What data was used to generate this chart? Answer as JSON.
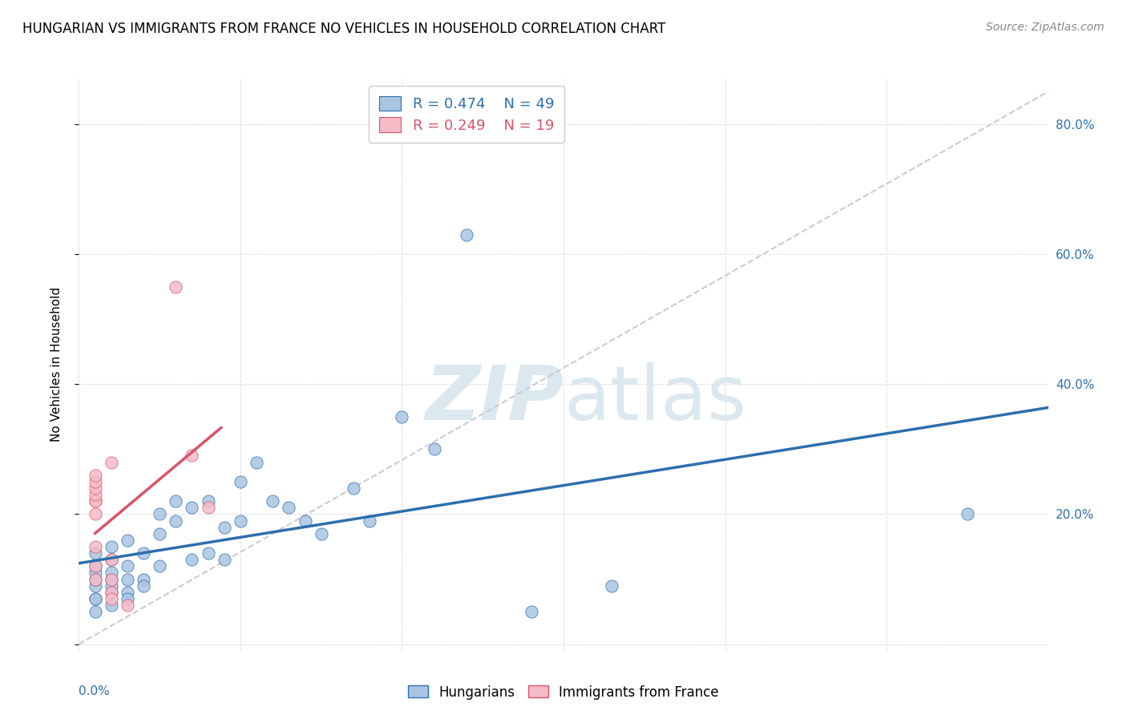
{
  "title": "HUNGARIAN VS IMMIGRANTS FROM FRANCE NO VEHICLES IN HOUSEHOLD CORRELATION CHART",
  "source": "Source: ZipAtlas.com",
  "ylabel": "No Vehicles in Household",
  "xlim": [
    0.0,
    0.6
  ],
  "ylim": [
    -0.01,
    0.87
  ],
  "yticks": [
    0.0,
    0.2,
    0.4,
    0.6,
    0.8
  ],
  "ytick_labels": [
    "",
    "20.0%",
    "40.0%",
    "60.0%",
    "80.0%"
  ],
  "legend_blue_r": "0.474",
  "legend_blue_n": "49",
  "legend_pink_r": "0.249",
  "legend_pink_n": "19",
  "blue_color": "#aac5e2",
  "pink_color": "#f5bcc8",
  "blue_line_color": "#2c6fad",
  "pink_line_color": "#d9546a",
  "dashed_line_color": "#cccccc",
  "watermark_color": "#dce8f0",
  "blue_scatter": [
    [
      0.01,
      0.05
    ],
    [
      0.01,
      0.07
    ],
    [
      0.01,
      0.09
    ],
    [
      0.01,
      0.1
    ],
    [
      0.01,
      0.11
    ],
    [
      0.01,
      0.12
    ],
    [
      0.01,
      0.14
    ],
    [
      0.01,
      0.07
    ],
    [
      0.02,
      0.08
    ],
    [
      0.02,
      0.1
    ],
    [
      0.02,
      0.11
    ],
    [
      0.02,
      0.06
    ],
    [
      0.02,
      0.09
    ],
    [
      0.02,
      0.13
    ],
    [
      0.02,
      0.15
    ],
    [
      0.03,
      0.08
    ],
    [
      0.03,
      0.1
    ],
    [
      0.03,
      0.12
    ],
    [
      0.03,
      0.07
    ],
    [
      0.03,
      0.16
    ],
    [
      0.04,
      0.14
    ],
    [
      0.04,
      0.1
    ],
    [
      0.04,
      0.09
    ],
    [
      0.05,
      0.12
    ],
    [
      0.05,
      0.17
    ],
    [
      0.05,
      0.2
    ],
    [
      0.06,
      0.22
    ],
    [
      0.06,
      0.19
    ],
    [
      0.07,
      0.21
    ],
    [
      0.07,
      0.13
    ],
    [
      0.08,
      0.14
    ],
    [
      0.08,
      0.22
    ],
    [
      0.09,
      0.18
    ],
    [
      0.09,
      0.13
    ],
    [
      0.1,
      0.25
    ],
    [
      0.1,
      0.19
    ],
    [
      0.11,
      0.28
    ],
    [
      0.12,
      0.22
    ],
    [
      0.13,
      0.21
    ],
    [
      0.14,
      0.19
    ],
    [
      0.15,
      0.17
    ],
    [
      0.17,
      0.24
    ],
    [
      0.18,
      0.19
    ],
    [
      0.2,
      0.35
    ],
    [
      0.22,
      0.3
    ],
    [
      0.24,
      0.63
    ],
    [
      0.28,
      0.05
    ],
    [
      0.33,
      0.09
    ],
    [
      0.55,
      0.2
    ]
  ],
  "pink_scatter": [
    [
      0.01,
      0.15
    ],
    [
      0.01,
      0.22
    ],
    [
      0.01,
      0.22
    ],
    [
      0.01,
      0.2
    ],
    [
      0.01,
      0.23
    ],
    [
      0.01,
      0.24
    ],
    [
      0.01,
      0.25
    ],
    [
      0.01,
      0.26
    ],
    [
      0.01,
      0.1
    ],
    [
      0.01,
      0.12
    ],
    [
      0.02,
      0.13
    ],
    [
      0.02,
      0.1
    ],
    [
      0.02,
      0.08
    ],
    [
      0.02,
      0.07
    ],
    [
      0.02,
      0.28
    ],
    [
      0.03,
      0.06
    ],
    [
      0.06,
      0.55
    ],
    [
      0.07,
      0.29
    ],
    [
      0.08,
      0.21
    ]
  ]
}
